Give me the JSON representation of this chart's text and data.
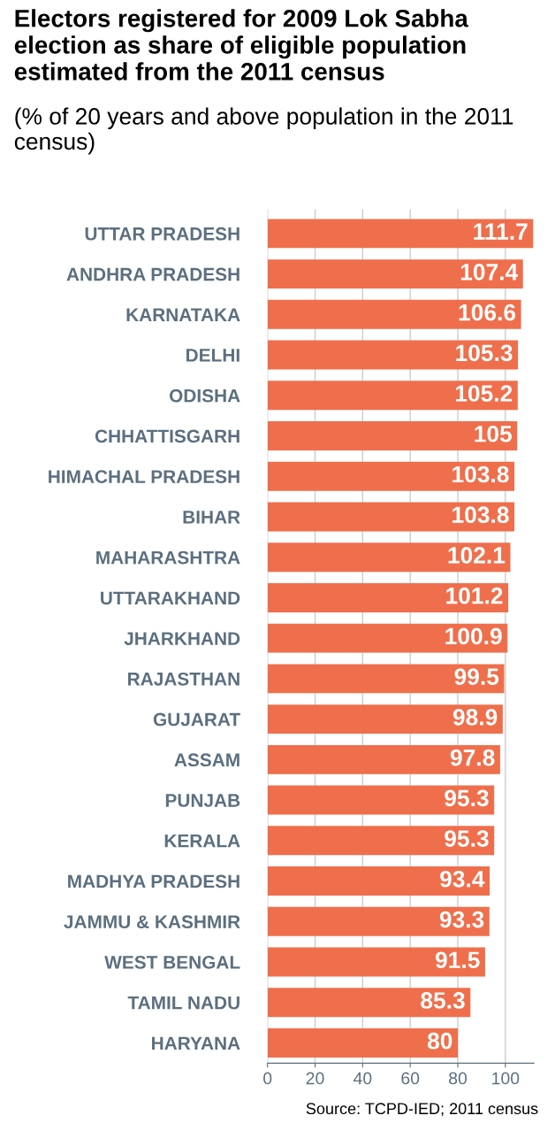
{
  "chart_data": {
    "type": "bar",
    "orientation": "horizontal",
    "title": "Electors registered for 2009 Lok Sabha election as share of eligible population estimated from the 2011 census",
    "subtitle": "(% of 20 years and above population in the 2011 census)",
    "categories": [
      "UTTAR PRADESH",
      "ANDHRA PRADESH",
      "KARNATAKA",
      "DELHI",
      "ODISHA",
      "CHHATTISGARH",
      "HIMACHAL PRADESH",
      "BIHAR",
      "MAHARASHTRA",
      "UTTARAKHAND",
      "JHARKHAND",
      "RAJASTHAN",
      "GUJARAT",
      "ASSAM",
      "PUNJAB",
      "KERALA",
      "MADHYA PRADESH",
      "JAMMU & KASHMIR",
      "WEST BENGAL",
      "TAMIL NADU",
      "HARYANA"
    ],
    "values": [
      111.7,
      107.4,
      106.6,
      105.3,
      105.2,
      105,
      103.8,
      103.8,
      102.1,
      101.2,
      100.9,
      99.5,
      98.9,
      97.8,
      95.3,
      95.3,
      93.4,
      93.3,
      91.5,
      85.3,
      80
    ],
    "color": "#ef6f4c",
    "data_labels": true,
    "xlim": [
      0,
      112
    ],
    "xticks": [
      0,
      20,
      40,
      60,
      80,
      100
    ],
    "grid": "x",
    "annotations": [
      "Source: TCPD-IED; 2011 census"
    ]
  }
}
